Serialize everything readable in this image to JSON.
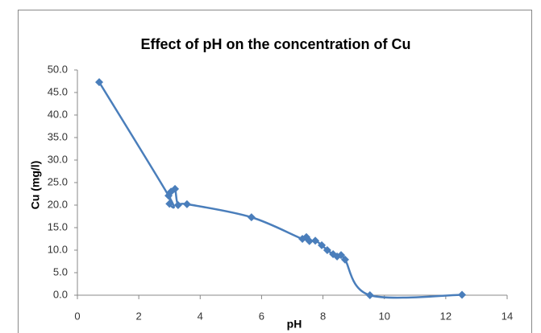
{
  "chart_data": {
    "type": "scatter",
    "title": "Effect of pH on the concentration of Cu",
    "x_label": "pH",
    "y_label": "Cu (mg/l)",
    "x": [
      0.71,
      2.97,
      3.0,
      3.05,
      3.18,
      3.28,
      3.57,
      5.67,
      7.33,
      7.46,
      7.56,
      7.75,
      7.96,
      8.14,
      8.33,
      8.46,
      8.59,
      8.72,
      9.53,
      12.53
    ],
    "series": [
      {
        "name": "Cu",
        "color": "#4a7ebb",
        "values": [
          47.3,
          22.1,
          20.3,
          23.0,
          23.6,
          20.0,
          20.2,
          17.3,
          12.5,
          12.9,
          12.0,
          12.1,
          11.1,
          10.0,
          9.1,
          8.6,
          8.9,
          7.9,
          0.0,
          0.1
        ]
      }
    ],
    "xlim": [
      0,
      14
    ],
    "xticks": [
      0,
      2,
      4,
      6,
      8,
      10,
      12,
      14
    ],
    "ylim": [
      0,
      50
    ],
    "yticks": [
      {
        "value": 0,
        "label": "0.0"
      },
      {
        "value": 5,
        "label": "5.0"
      },
      {
        "value": 10,
        "label": "10.0"
      },
      {
        "value": 15,
        "label": "15.0"
      },
      {
        "value": 20,
        "label": "20.0"
      },
      {
        "value": 25,
        "label": "25.0"
      },
      {
        "value": 30,
        "label": "30.0"
      },
      {
        "value": 35,
        "label": "35.0"
      },
      {
        "value": 40,
        "label": "40.0"
      },
      {
        "value": 45,
        "label": "45.0"
      },
      {
        "value": 50,
        "label": "50.0"
      }
    ],
    "smooth": true
  }
}
